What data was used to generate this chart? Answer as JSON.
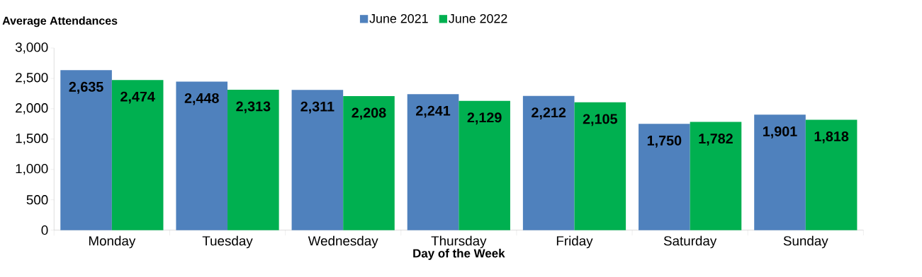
{
  "chart_data": {
    "type": "bar",
    "ylabel": "Average Attendances",
    "xlabel": "Day of the Week",
    "categories": [
      "Monday",
      "Tuesday",
      "Wednesday",
      "Thursday",
      "Friday",
      "Saturday",
      "Sunday"
    ],
    "series": [
      {
        "name": "June 2021",
        "color": "#4f81bd",
        "values": [
          2635,
          2448,
          2311,
          2241,
          2212,
          1750,
          1901
        ],
        "value_labels": [
          "2,635",
          "2,448",
          "2,311",
          "2,241",
          "2,212",
          "1,750",
          "1,901"
        ]
      },
      {
        "name": "June 2022",
        "color": "#00b050",
        "values": [
          2474,
          2313,
          2208,
          2129,
          2105,
          1782,
          1818
        ],
        "value_labels": [
          "2,474",
          "2,313",
          "2,208",
          "2,129",
          "2,105",
          "1,782",
          "1,818"
        ]
      }
    ],
    "ylim": [
      0,
      3000
    ],
    "yticks": [
      0,
      500,
      {
        "value": 1000,
        "label": "1,000"
      },
      {
        "value": 1500,
        "label": "1,500"
      },
      {
        "value": 2000,
        "label": "2,000"
      },
      {
        "value": 2500,
        "label": "2,500"
      },
      {
        "value": 3000,
        "label": "3,000"
      }
    ],
    "legend": "top"
  }
}
